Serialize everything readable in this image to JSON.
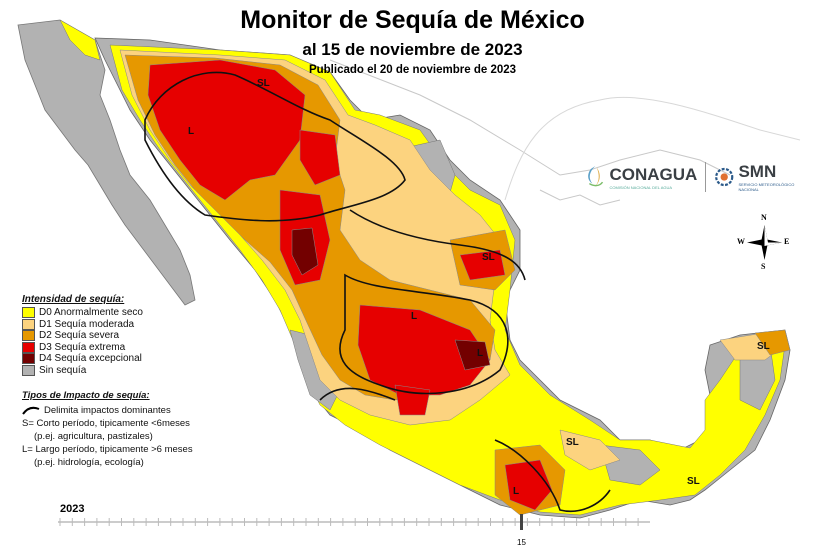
{
  "title": {
    "main": "Monitor de Sequía de México",
    "date": "al 15 de noviembre de 2023",
    "published": "Publicado el 20 de noviembre de 2023"
  },
  "logos": {
    "conagua": "CONAGUA",
    "conagua_sub": "COMISIÓN NACIONAL DEL AGUA",
    "smn": "SMN",
    "smn_sub": "SERVICIO METEOROLÓGICO NACIONAL"
  },
  "compass": {
    "n": "N",
    "s": "S",
    "e": "E",
    "w": "W"
  },
  "legend": {
    "title": "Intensidad de sequía:",
    "items": [
      {
        "label": "D0 Anormalmente seco",
        "color": "#ffff00"
      },
      {
        "label": "D1 Sequía moderada",
        "color": "#fcd37f"
      },
      {
        "label": "D2 Sequía severa",
        "color": "#e69800"
      },
      {
        "label": "D3 Sequía extrema",
        "color": "#e60000"
      },
      {
        "label": "D4 Sequía excepcional",
        "color": "#730000"
      },
      {
        "label": "Sin sequía",
        "color": "#b2b2b2"
      }
    ]
  },
  "impacts": {
    "title": "Tipos de Impacto de sequía:",
    "line": "Delimita impactos dominantes",
    "s1": "S= Corto período, tipicamente <6meses",
    "s2": "(p.ej. agricultura, pastizales)",
    "l1": "L= Largo período, tipicamente >6 meses",
    "l2": "(p.ej. hidrología, ecología)"
  },
  "map_labels": {
    "sl_north": "SL",
    "l_north": "L",
    "sl_tamaulipas": "SL",
    "l_center": "L",
    "l_center2": "L",
    "sl_yucatan": "SL",
    "sl_oaxaca": "SL",
    "sl_chiapas": "SL",
    "l_south": "L"
  },
  "timeline": {
    "year": "2023",
    "marker": "15"
  }
}
